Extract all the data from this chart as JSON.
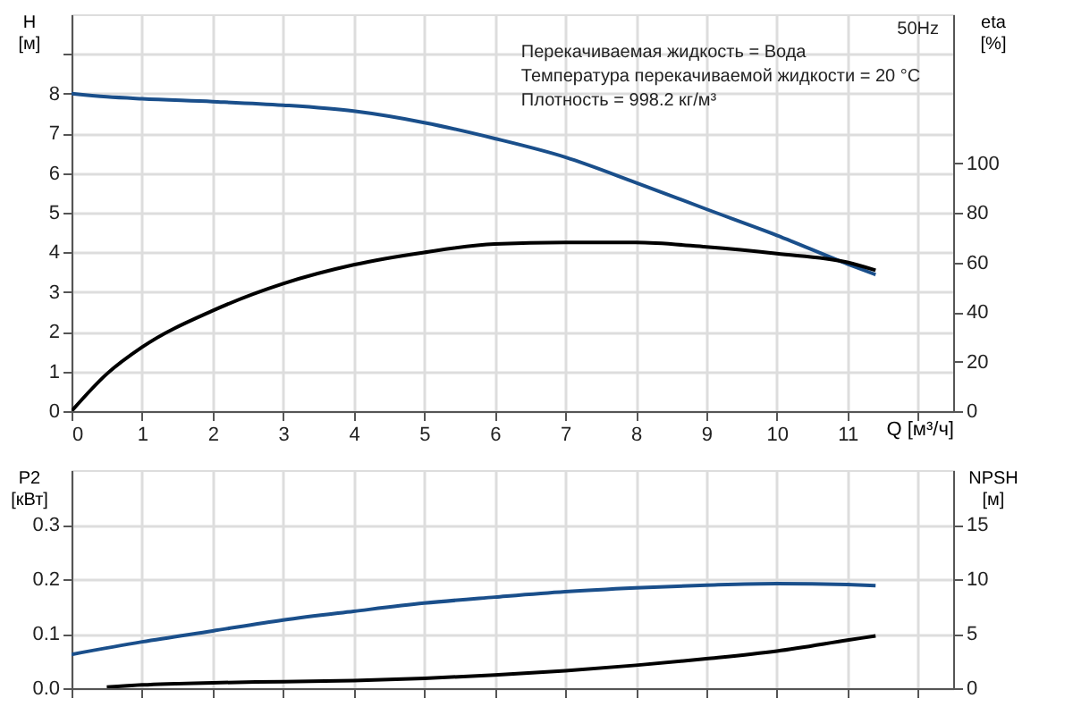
{
  "chart_data": [
    {
      "type": "line",
      "title": "50Hz",
      "xlabel": "Q [м³/ч]",
      "ylabel": "H [м]",
      "y2label": "eta [%]",
      "annotations": [
        "Перекачиваемая жидкость = Вода",
        "Температура перекачиваемой жидкости = 20 °C",
        "Плотность = 998.2 кг/м³"
      ],
      "xlim": [
        0,
        12.5
      ],
      "xticks": [
        0,
        1,
        2,
        3,
        4,
        5,
        6,
        7,
        8,
        9,
        10,
        11,
        {
          "value": 12,
          "label": null
        }
      ],
      "ylim": [
        0,
        10
      ],
      "yticks": [
        0,
        1,
        2,
        3,
        4,
        5,
        6,
        7,
        8,
        {
          "value": 9,
          "label": null
        }
      ],
      "y2lim": [
        0,
        160
      ],
      "y2ticks": [
        0,
        20,
        40,
        60,
        80,
        100
      ],
      "grid": true,
      "legend": false,
      "marker": "none",
      "line_style": "solid",
      "series": [
        {
          "color": "#1a4f8b",
          "x": [
            0,
            0.5,
            1,
            2,
            3,
            4,
            5,
            6,
            7,
            8,
            9,
            10,
            11,
            11.4
          ],
          "values": [
            8.0,
            7.92,
            7.87,
            7.8,
            7.71,
            7.56,
            7.27,
            6.87,
            6.4,
            5.76,
            5.09,
            4.43,
            3.71,
            3.44
          ]
        },
        {
          "color": "#000000",
          "axis": "y2",
          "x": [
            0,
            0.5,
            1,
            2,
            3,
            4,
            5,
            6,
            7,
            8,
            9,
            10,
            11,
            11.4
          ],
          "values": [
            0,
            15,
            25.8,
            40.5,
            51.4,
            59,
            64,
            67.4,
            68,
            68,
            66.2,
            63.5,
            60,
            56.8
          ]
        }
      ]
    },
    {
      "type": "line",
      "ylabel": "P2 [кВт]",
      "y2label": "NPSH [м]",
      "xlim": [
        0,
        12.5
      ],
      "xticks": [
        0,
        1,
        2,
        3,
        4,
        5,
        6,
        7,
        8,
        9,
        10,
        11,
        12
      ],
      "ylim": [
        0,
        0.4
      ],
      "yticks": [
        {
          "value": 0,
          "label": "0.0"
        },
        0.1,
        0.2,
        0.3
      ],
      "y2lim": [
        0,
        20
      ],
      "y2ticks": [
        0,
        5,
        10,
        15
      ],
      "tick_labels": "y",
      "grid": true,
      "legend": false,
      "marker": "none",
      "line_style": "solid",
      "series": [
        {
          "color": "#1a4f8b",
          "x": [
            0,
            1,
            2,
            3,
            4,
            5,
            6,
            7,
            8,
            9,
            10,
            11,
            11.4
          ],
          "values": [
            0.062,
            0.085,
            0.105,
            0.125,
            0.141,
            0.156,
            0.167,
            0.177,
            0.184,
            0.189,
            0.192,
            0.19,
            0.188
          ]
        },
        {
          "color": "#000000",
          "axis": "y2",
          "x": [
            0.5,
            1,
            2,
            3,
            4,
            5,
            6,
            7,
            8,
            9,
            10,
            11,
            11.4
          ],
          "values": [
            0.1,
            0.3,
            0.5,
            0.6,
            0.7,
            0.9,
            1.2,
            1.6,
            2.1,
            2.7,
            3.4,
            4.4,
            4.8
          ]
        }
      ]
    }
  ]
}
